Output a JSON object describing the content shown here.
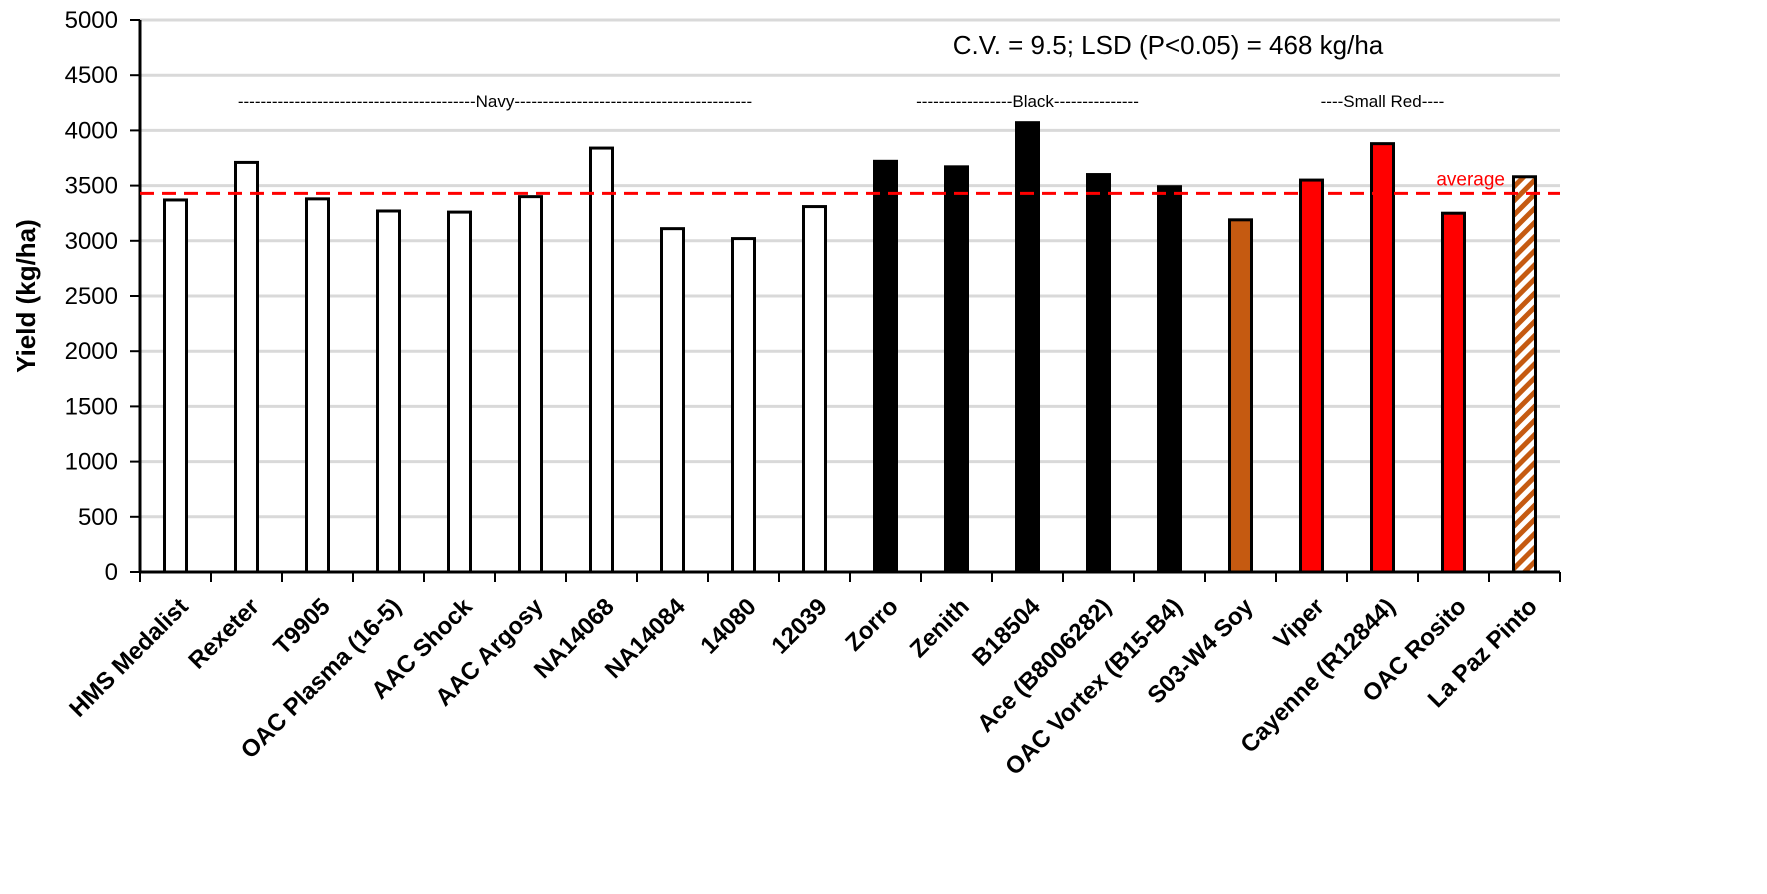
{
  "chart_data": {
    "type": "bar",
    "ylabel": "Yield (kg/ha)",
    "xlabel": "",
    "ylim": [
      0,
      5000
    ],
    "yticks": [
      0,
      500,
      1000,
      1500,
      2000,
      2500,
      3000,
      3500,
      4000,
      4500,
      5000
    ],
    "grid": true,
    "categories": [
      "HMS Medalist",
      "Rexeter",
      "T9905",
      "OAC Plasma (16-5)",
      "AAC Shock",
      "AAC Argosy",
      "NA14068",
      "NA14084",
      "14080",
      "12039",
      "Zorro",
      "Zenith",
      "B18504",
      "Ace (B8006282)",
      "OAC Vortex (B15-B4)",
      "S03-W4 Soy",
      "Viper",
      "Cayenne (R12844)",
      "OAC Rosito",
      "La Paz Pinto"
    ],
    "values": [
      3370,
      3710,
      3380,
      3270,
      3260,
      3400,
      3840,
      3110,
      3020,
      3310,
      3720,
      3670,
      4070,
      3600,
      3490,
      3190,
      3550,
      3880,
      3250,
      3580
    ],
    "bar_fills": [
      "white",
      "white",
      "white",
      "white",
      "white",
      "white",
      "white",
      "white",
      "white",
      "white",
      "black",
      "black",
      "black",
      "black",
      "black",
      "orange",
      "red",
      "red",
      "red",
      "hatch"
    ],
    "colors": {
      "white": "#ffffff",
      "black": "#000000",
      "orange": "#c55a11",
      "red": "#ff0000",
      "hatch_a": "#c55a11",
      "hatch_b": "#ffffff",
      "average_line": "#ff0000",
      "grid": "#d9d9d9"
    },
    "average": {
      "value": 3430,
      "label": "average"
    },
    "annotation": "C.V. = 9.5; LSD (P<0.05) = 468 kg/ha",
    "groups": [
      {
        "label": "------------------------------------------Navy------------------------------------------",
        "from": 0,
        "to": 9
      },
      {
        "label": "-----------------Black---------------",
        "from": 10,
        "to": 14
      },
      {
        "label": "----Small Red----",
        "from": 16,
        "to": 18
      }
    ]
  }
}
